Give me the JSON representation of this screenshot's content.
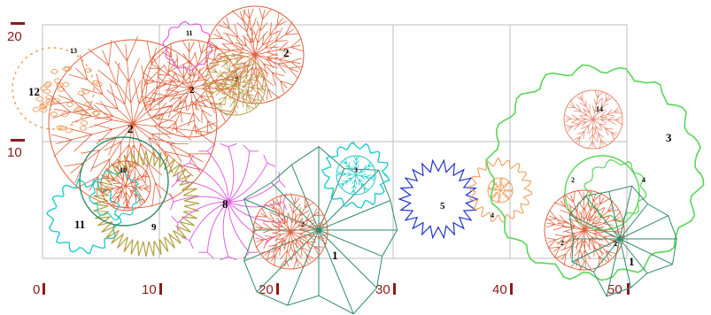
{
  "axis": {
    "x_ticks": [
      "0",
      "10",
      "20",
      "30",
      "40",
      "50"
    ],
    "y_ticks": [
      "20",
      "10"
    ]
  },
  "plant_labels": {
    "p1a": "1",
    "p1b": "1",
    "p2a": "2",
    "p2b": "2",
    "p2c": "2",
    "p2d": "2",
    "p2e": "2",
    "p2f": "2",
    "p2g": "2",
    "p3": "3",
    "p3b": "3",
    "p4a": "4",
    "p4b": "4",
    "p5": "5",
    "p7": "7",
    "p8": "8",
    "p9": "9",
    "p10": "10",
    "p11a": "11",
    "p11b": "11",
    "p12": "12",
    "p13": "13",
    "p14": "14"
  },
  "colors": {
    "grid": "#bdbdbd",
    "axis_text": "#8b1a1a",
    "tree_red": "#e0603a",
    "tree_orange": "#f0a060",
    "shrub_green": "#2e8b6a",
    "light_green": "#59d659",
    "cyan": "#22cccc",
    "magenta": "#e060e0",
    "olive": "#b0a040",
    "blue": "#2233cc",
    "salmon": "#e88a70"
  }
}
